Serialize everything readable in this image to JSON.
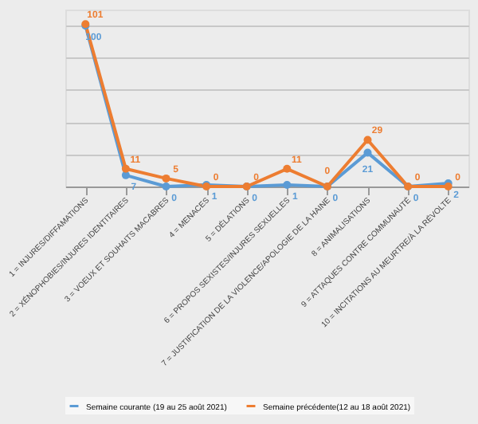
{
  "chart_data": {
    "type": "line",
    "categories": [
      "1 = INJURES/DIFFAMATIONS",
      "2 = XÉNOPHOBIES/INJURES IDENTITAIRES",
      "3 = VOEUX ET SOUHAITS MACABRES",
      "4 = MENACES",
      "5 = DÉLATIONS",
      "6 = PROPOS SEXISTES/INJURES SEXUELLES",
      "7 = JUSTIFICATION DE LA VIOLENCE/APOLOGIE DE LA HAINE",
      "8 = ANIMALISATIONS",
      "9 = ATTAQUES CONTRE COMMUNAUTÉ",
      "10 = INCITATIONS AU MEURTRE/À LA RÉVOLTE"
    ],
    "series": [
      {
        "name": "Semaine courante (19 au 25 août 2021)",
        "color": "#5b9bd5",
        "values": [
          100,
          7,
          0,
          1,
          0,
          1,
          0,
          21,
          0,
          2
        ]
      },
      {
        "name": "Semaine précédente(12 au 18 août 2021)",
        "color": "#ed7d31",
        "values": [
          101,
          11,
          5,
          0,
          0,
          11,
          0,
          29,
          0,
          0
        ]
      }
    ],
    "grid": "y",
    "tick_labels": "x",
    "data_labels": true,
    "marker": "circle",
    "legend": "bottom"
  }
}
